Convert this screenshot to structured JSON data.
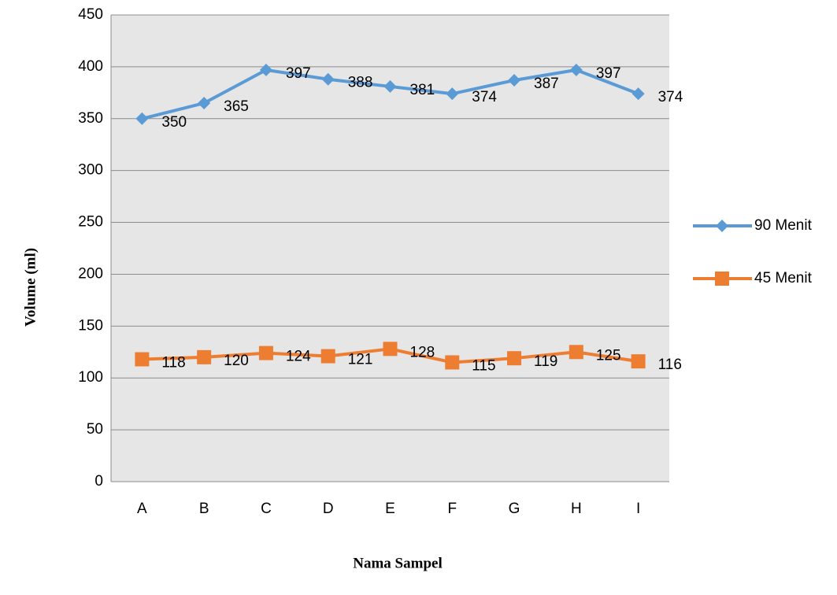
{
  "chart_data": {
    "type": "line",
    "categories": [
      "A",
      "B",
      "C",
      "D",
      "E",
      "F",
      "G",
      "H",
      "I"
    ],
    "series": [
      {
        "name": "90 Menit",
        "color": "#5b9bd5",
        "marker": "diamond",
        "values": [
          350,
          365,
          397,
          388,
          381,
          374,
          387,
          397,
          374
        ]
      },
      {
        "name": "45 Menit",
        "color": "#ed7d31",
        "marker": "square",
        "values": [
          118,
          120,
          124,
          121,
          128,
          115,
          119,
          125,
          116
        ]
      }
    ],
    "ylim": [
      0,
      450
    ],
    "yticks": [
      0,
      50,
      100,
      150,
      200,
      250,
      300,
      350,
      400,
      450
    ],
    "grid": true,
    "legend": "right",
    "xlabel": "Nama Sampel",
    "ylabel": "Volume (ml)"
  }
}
